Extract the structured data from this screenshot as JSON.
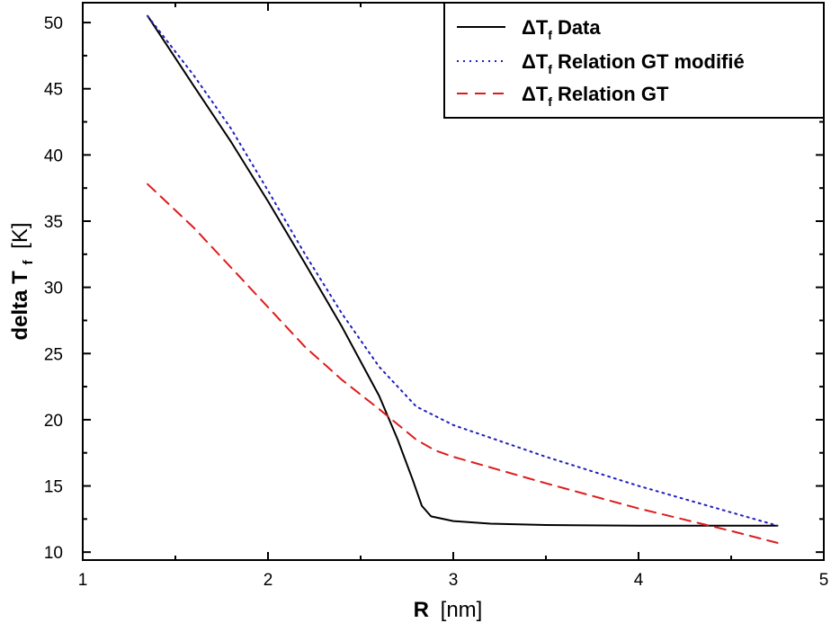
{
  "chart_data": {
    "type": "line",
    "xlabel": {
      "main": "R",
      "unit": "[nm]"
    },
    "ylabel": {
      "main": "delta T",
      "sub": "f",
      "unit": "[K]"
    },
    "xlim": [
      1,
      5
    ],
    "ylim": [
      9.4,
      51.5
    ],
    "xticks": [
      1,
      2,
      3,
      4,
      5
    ],
    "yticks": [
      10,
      15,
      20,
      25,
      30,
      35,
      40,
      45,
      50
    ],
    "grid": false,
    "legend_position": "top-right",
    "legend_prefix": "ΔT",
    "legend_sub": "f",
    "series": [
      {
        "name": "Data",
        "color": "#000000",
        "style": "solid",
        "x": [
          1.35,
          1.6,
          1.8,
          2.0,
          2.2,
          2.4,
          2.6,
          2.7,
          2.78,
          2.83,
          2.88,
          3.0,
          3.2,
          3.5,
          4.0,
          4.5,
          4.75
        ],
        "y": [
          50.5,
          45.2,
          41.0,
          36.5,
          31.8,
          27.0,
          21.8,
          18.5,
          15.5,
          13.5,
          12.7,
          12.35,
          12.15,
          12.05,
          12.0,
          12.0,
          12.0
        ]
      },
      {
        "name": "Relation GT modifié",
        "color": "#1f1fbf",
        "style": "dotted",
        "x": [
          1.35,
          1.6,
          1.8,
          2.0,
          2.2,
          2.4,
          2.6,
          2.8,
          2.9,
          3.0,
          3.5,
          4.0,
          4.5,
          4.75
        ],
        "y": [
          50.5,
          46.0,
          42.0,
          37.3,
          32.5,
          28.0,
          24.0,
          21.0,
          20.3,
          19.6,
          17.2,
          15.0,
          13.0,
          12.0
        ]
      },
      {
        "name": "Relation GT",
        "color": "#dd1c1c",
        "style": "dashed",
        "x": [
          1.35,
          1.6,
          1.8,
          2.0,
          2.2,
          2.4,
          2.6,
          2.8,
          2.9,
          3.0,
          3.5,
          4.0,
          4.5,
          4.75
        ],
        "y": [
          37.8,
          34.5,
          31.5,
          28.5,
          25.5,
          23.0,
          20.8,
          18.5,
          17.7,
          17.2,
          15.2,
          13.3,
          11.6,
          10.7
        ]
      }
    ]
  }
}
